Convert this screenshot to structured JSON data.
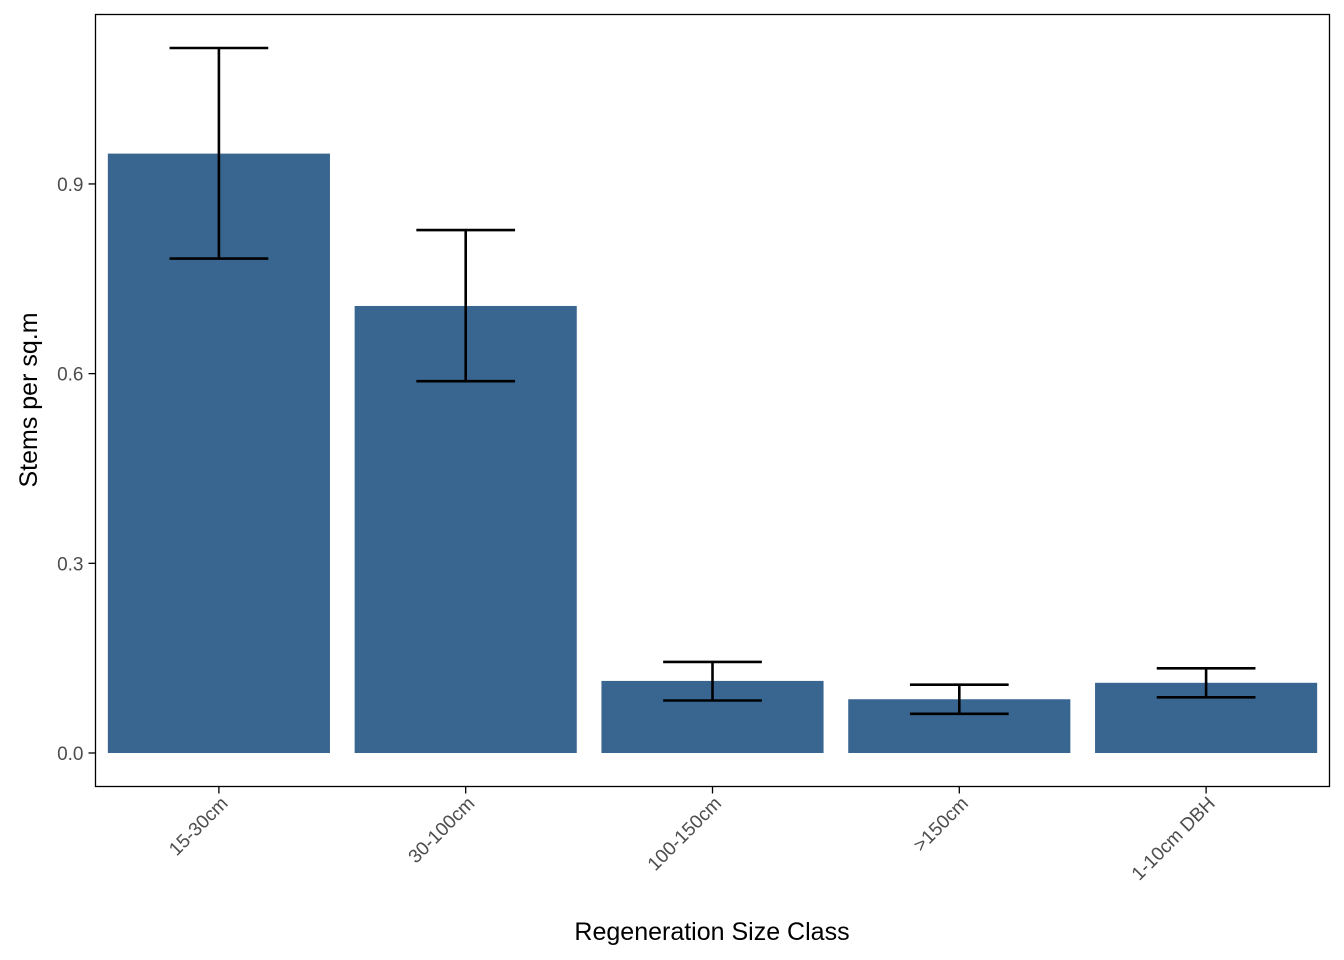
{
  "chart_data": {
    "type": "bar",
    "title": "",
    "xlabel": "Regeneration Size Class",
    "ylabel": "Stems per sq.m",
    "categories": [
      "15-30cm",
      "30-100cm",
      "100-150cm",
      ">150cm",
      "1-10cm DBH"
    ],
    "values": [
      0.948,
      0.707,
      0.114,
      0.085,
      0.111
    ],
    "error_low": [
      0.782,
      0.588,
      0.083,
      0.062,
      0.088
    ],
    "error_high": [
      1.115,
      0.827,
      0.144,
      0.108,
      0.134
    ],
    "yticks": [
      0.0,
      0.3,
      0.6,
      0.9
    ],
    "ytick_labels": [
      "0.0",
      "0.3",
      "0.6",
      "0.9"
    ],
    "ylim": [
      -0.053,
      1.168
    ],
    "grid": false,
    "bar_color": "#386690",
    "error_color": "#000000"
  }
}
